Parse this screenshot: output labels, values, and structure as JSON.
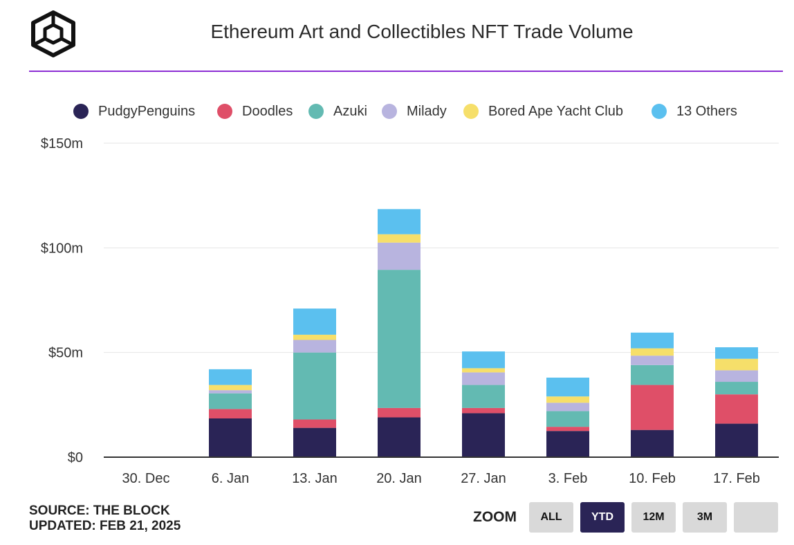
{
  "header": {
    "title": "Ethereum Art and Collectibles NFT Trade Volume",
    "logo_icon": "the-block-cube-logo-icon"
  },
  "footer": {
    "source": "SOURCE: THE BLOCK",
    "updated": "UPDATED: FEB 21, 2025"
  },
  "zoom": {
    "label": "ZOOM",
    "buttons": [
      {
        "label": "ALL",
        "active": false
      },
      {
        "label": "YTD",
        "active": true
      },
      {
        "label": "12M",
        "active": false
      },
      {
        "label": "3M",
        "active": false
      },
      {
        "label": "",
        "active": false
      }
    ]
  },
  "chart_data": {
    "type": "bar",
    "stacked": true,
    "title": "Ethereum Art and Collectibles NFT Trade Volume",
    "categories": [
      "30. Dec",
      "6. Jan",
      "13. Jan",
      "20. Jan",
      "27. Jan",
      "3. Feb",
      "10. Feb",
      "17. Feb"
    ],
    "y_ticks": [
      "$0",
      "$50m",
      "$100m",
      "$150m"
    ],
    "ylim": [
      0,
      150
    ],
    "y_unit": "million USD",
    "grid": true,
    "legend_position": "top",
    "series": [
      {
        "name": "PudgyPenguins",
        "color": "#2a2456",
        "values": [
          0,
          18.5,
          14,
          19,
          21,
          12.5,
          13,
          16
        ]
      },
      {
        "name": "Doodles",
        "color": "#df4f68",
        "values": [
          0,
          4.5,
          4,
          4.5,
          2.5,
          2,
          21.5,
          14
        ]
      },
      {
        "name": "Azuki",
        "color": "#63bab2",
        "values": [
          0,
          7.5,
          32,
          66,
          11,
          7.5,
          9.5,
          6
        ]
      },
      {
        "name": "Milady",
        "color": "#b8b4df",
        "values": [
          0,
          1.5,
          6,
          13,
          6,
          4,
          4.5,
          5.5
        ]
      },
      {
        "name": "Bored Ape Yacht Club",
        "color": "#f6df6a",
        "values": [
          0,
          2.5,
          2.5,
          4,
          2,
          3,
          3.5,
          5.5
        ]
      },
      {
        "name": "13 Others",
        "color": "#5bc0ef",
        "values": [
          0,
          7.5,
          12.5,
          12,
          8,
          9,
          7.5,
          5.5
        ]
      }
    ]
  }
}
